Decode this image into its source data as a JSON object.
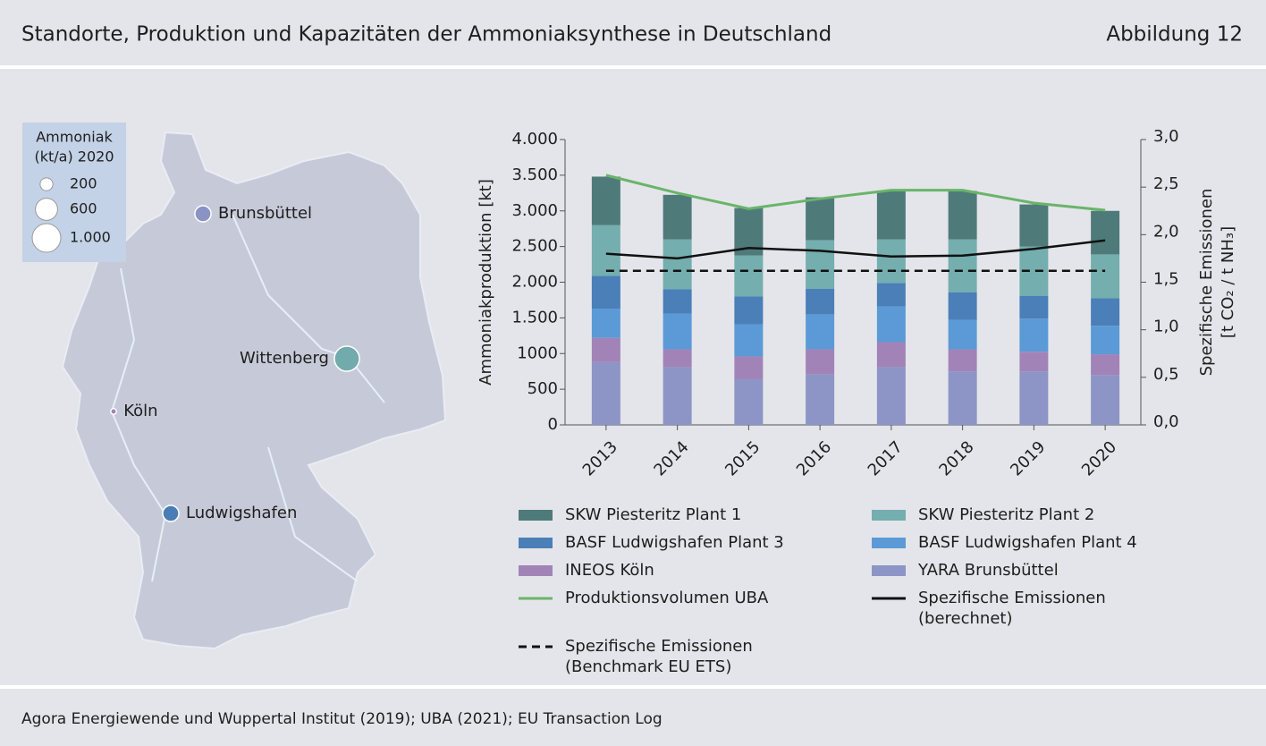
{
  "header": {
    "title": "Standorte, Produktion und Kapazitäten der Ammoniaksynthese in Deutschland",
    "figure": "Abbildung 12"
  },
  "footer": {
    "source": "Agora Energiewende und Wuppertal Institut (2019); UBA (2021); EU Transaction Log"
  },
  "map": {
    "legend_title": [
      "Ammoniak",
      "(kt/a) 2020"
    ],
    "legend": [
      200,
      600,
      {
        "value": 1000,
        "label": "1.000"
      }
    ],
    "sites": [
      {
        "name": "Brunsbüttel",
        "value": 320,
        "color": "#8a93c4"
      },
      {
        "name": "Wittenberg",
        "value": 770,
        "color": "#72abab"
      },
      {
        "name": "Köln",
        "value": 40,
        "color": "#a283b8"
      },
      {
        "name": "Ludwigshafen",
        "value": 320,
        "color": "#4a7db5"
      }
    ]
  },
  "chart_data": {
    "type": "bar",
    "stacked": true,
    "categories": [
      "2013",
      "2014",
      "2015",
      "2016",
      "2017",
      "2018",
      "2019",
      "2020"
    ],
    "ylabel": "Ammoniakproduktion [kt]",
    "y2label": [
      "Spezifische Emissionen",
      "[t CO₂ / t NH₃]"
    ],
    "ylim": [
      0,
      4000
    ],
    "yticks": [
      0,
      500,
      {
        "value": 1000,
        "label": "1000"
      },
      {
        "value": 1500,
        "label": "1.500"
      },
      {
        "value": 2000,
        "label": "2.000"
      },
      {
        "value": 2500,
        "label": "2.500"
      },
      {
        "value": 3000,
        "label": "3.000"
      },
      {
        "value": 3500,
        "label": "3.500"
      },
      {
        "value": 4000,
        "label": "4.000"
      }
    ],
    "y2lim": [
      0,
      3
    ],
    "y2ticks": [
      {
        "value": 0,
        "label": "0,0"
      },
      {
        "value": 0.5,
        "label": "0,5"
      },
      {
        "value": 1,
        "label": "1,0"
      },
      {
        "value": 1.5,
        "label": "1,5"
      },
      {
        "value": 2,
        "label": "2,0"
      },
      {
        "value": 2.5,
        "label": "2,5"
      },
      {
        "value": 3,
        "label": "3,0"
      }
    ],
    "series": [
      {
        "name": "SKW Piesteritz Plant 1",
        "color": "#4f7a7a",
        "values": [
          680,
          625,
          665,
          600,
          680,
          680,
          590,
          610
        ]
      },
      {
        "name": "SKW Piesteritz Plant 2",
        "color": "#74aeae",
        "values": [
          710,
          700,
          575,
          680,
          610,
          740,
          690,
          615
        ]
      },
      {
        "name": "BASF Ludwigshafen Plant 3",
        "color": "#4a7fb8",
        "values": [
          460,
          340,
          390,
          360,
          330,
          390,
          320,
          385
        ]
      },
      {
        "name": "BASF Ludwigshafen Plant 4",
        "color": "#5b9ad6",
        "values": [
          410,
          500,
          450,
          490,
          500,
          410,
          465,
          400
        ]
      },
      {
        "name": "INEOS Köln",
        "color": "#a283b8",
        "values": [
          340,
          250,
          320,
          350,
          350,
          310,
          275,
          290
        ]
      },
      {
        "name": "YARA Brunsbüttel",
        "color": "#8c95c6",
        "values": [
          880,
          810,
          640,
          710,
          810,
          750,
          750,
          700
        ]
      },
      {
        "name": "Produktionsvolumen UBA",
        "color": "#6ab46a",
        "type": "line",
        "values": [
          3500,
          3250,
          3030,
          3170,
          3290,
          3290,
          3110,
          3010
        ]
      },
      {
        "name": "Spezifische Emissionen (berechnet)",
        "color": "#111111",
        "type": "line",
        "axis": "y2",
        "values": [
          1.8,
          1.75,
          1.86,
          1.83,
          1.77,
          1.78,
          1.85,
          1.94
        ]
      },
      {
        "name": "Spezifische Emissionen (Benchmark EU ETS)",
        "color": "#111111",
        "type": "line",
        "axis": "y2",
        "dash": true,
        "values": [
          1.62,
          1.62,
          1.62,
          1.62,
          1.62,
          1.62,
          1.62,
          1.62
        ]
      }
    ]
  }
}
